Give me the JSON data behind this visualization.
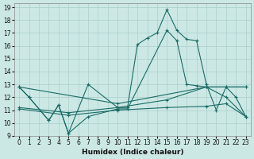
{
  "xlabel": "Humidex (Indice chaleur)",
  "background_color": "#cce8e5",
  "grid_color": "#aacfcc",
  "line_color": "#1a6b65",
  "xlim": [
    -0.5,
    23.5
  ],
  "ylim": [
    9,
    19.3
  ],
  "xticks": [
    0,
    1,
    2,
    3,
    4,
    5,
    6,
    7,
    8,
    9,
    10,
    11,
    12,
    13,
    14,
    15,
    16,
    17,
    18,
    19,
    20,
    21,
    22,
    23
  ],
  "yticks": [
    9,
    10,
    11,
    12,
    13,
    14,
    15,
    16,
    17,
    18,
    19
  ],
  "line_main": {
    "x": [
      0,
      1,
      3,
      4,
      5,
      7,
      10,
      11,
      12,
      13,
      14,
      15,
      16,
      17,
      18,
      19,
      20,
      21,
      22,
      23
    ],
    "y": [
      12.8,
      12.0,
      10.2,
      11.4,
      9.2,
      13.0,
      11.2,
      11.2,
      16.1,
      16.6,
      17.0,
      18.8,
      17.2,
      16.5,
      16.4,
      13.0,
      11.0,
      12.8,
      12.0,
      10.5
    ]
  },
  "line_zigzag": {
    "x": [
      0,
      1,
      3,
      4,
      5,
      7,
      10,
      11,
      15,
      16,
      17,
      18,
      19,
      21,
      23
    ],
    "y": [
      12.8,
      12.0,
      10.2,
      11.4,
      9.2,
      10.5,
      11.1,
      11.1,
      17.2,
      16.4,
      13.0,
      12.9,
      12.8,
      12.0,
      10.5
    ]
  },
  "line_flat_low": {
    "x": [
      0,
      5,
      10,
      15,
      19,
      21,
      23
    ],
    "y": [
      11.1,
      10.6,
      11.0,
      11.2,
      11.3,
      11.5,
      10.5
    ]
  },
  "line_flat_mid": {
    "x": [
      0,
      5,
      10,
      15,
      19,
      21,
      23
    ],
    "y": [
      11.2,
      10.8,
      11.2,
      11.8,
      12.8,
      12.8,
      12.8
    ]
  },
  "line_flat_high": {
    "x": [
      0,
      10,
      19,
      23
    ],
    "y": [
      12.8,
      11.5,
      12.8,
      12.8
    ]
  }
}
